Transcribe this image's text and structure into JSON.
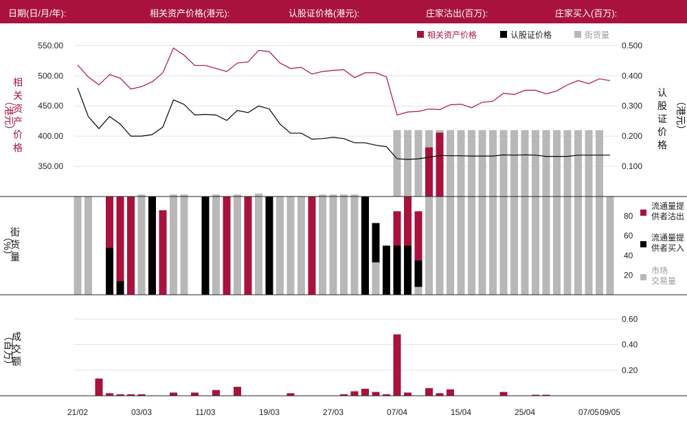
{
  "header": {
    "date_label": "日期(日/月/年):",
    "underlying_label": "相关资产价格(港元):",
    "warrant_label": "认股证价格(港元):",
    "mm_sell_label": "庄家沽出(百万):",
    "mm_buy_label": "庄家买入(百万):"
  },
  "colors": {
    "brand": "#a8123c",
    "warrant": "#000000",
    "street": "#b8b8b8",
    "grid": "#e2e2e2"
  },
  "chart_data": [
    {
      "type": "line",
      "legend": [
        "相关资产价格",
        "认股证价格",
        "街货量"
      ],
      "ylabel_left": [
        "相",
        "关",
        "资",
        "产",
        "价",
        "格"
      ],
      "ylabel_left_unit": "（港元）",
      "ylabel_right": [
        "认",
        "股",
        "证",
        "价",
        "格"
      ],
      "ylabel_right_unit": "（港元）",
      "yticks_left": [
        "550.00",
        "500.00",
        "450.00",
        "400.00",
        "350.00"
      ],
      "yticks_right": [
        "0.500",
        "0.400",
        "0.300",
        "0.200",
        "0.100"
      ],
      "ylim_left": [
        300,
        580
      ],
      "ylim_right": [
        0,
        0.56
      ],
      "series": [
        {
          "name": "相关资产价格",
          "axis": "left",
          "values": [
            518,
            498,
            485,
            502,
            496,
            478,
            482,
            490,
            505,
            546,
            534,
            517,
            517,
            512,
            507,
            521,
            523,
            542,
            540,
            521,
            512,
            514,
            503,
            507,
            509,
            510,
            497,
            505,
            505,
            498,
            435,
            440,
            441,
            445,
            444,
            452,
            453,
            447,
            456,
            458,
            471,
            469,
            476,
            476,
            470,
            475,
            485,
            492,
            487,
            495,
            492
          ]
        },
        {
          "name": "认股证价格",
          "axis": "right",
          "values": [
            0.36,
            0.265,
            0.225,
            0.265,
            0.24,
            0.2,
            0.2,
            0.205,
            0.23,
            0.32,
            0.305,
            0.27,
            0.272,
            0.27,
            0.252,
            0.285,
            0.278,
            0.3,
            0.29,
            0.24,
            0.21,
            0.21,
            0.19,
            0.192,
            0.196,
            0.192,
            0.178,
            0.178,
            0.17,
            0.165,
            0.125,
            0.123,
            0.125,
            0.13,
            0.136,
            0.135,
            0.135,
            0.134,
            0.134,
            0.134,
            0.138,
            0.137,
            0.138,
            0.137,
            0.133,
            0.133,
            0.133,
            0.137,
            0.137,
            0.137,
            0.137
          ]
        }
      ],
      "street_bars": [
        0,
        0,
        0,
        0,
        0,
        0,
        0,
        0,
        0,
        0,
        0,
        0,
        0,
        0,
        0,
        0,
        0,
        0,
        0,
        0,
        0,
        0,
        0,
        0,
        0,
        0,
        0,
        0,
        0,
        0,
        0.22,
        0.22,
        0.22,
        0.22,
        0.22,
        0.22,
        0.22,
        0.22,
        0.22,
        0.22,
        0.22,
        0.22,
        0.22,
        0.22,
        0.22,
        0.22,
        0.22,
        0.22,
        0.22,
        0.22,
        0
      ]
    },
    {
      "type": "bar",
      "ylabel": [
        "街",
        "货",
        "量"
      ],
      "ylabel_unit": "（%）",
      "yticks": [
        "80",
        "60",
        "40",
        "20"
      ],
      "ylim": [
        0,
        100
      ],
      "legend": [
        {
          "name": "流通量提供者沽出",
          "lines": [
            "流通量提",
            "供者沽出"
          ]
        },
        {
          "name": "流通量提供者买入",
          "lines": [
            "流通量提",
            "供者买入"
          ]
        },
        {
          "name": "市场交易量",
          "lines": [
            "市场",
            "交易量"
          ]
        }
      ],
      "series": [
        {
          "name": "流通量提供者沽出",
          "values": [
            0,
            0,
            0,
            52,
            86,
            100,
            0,
            0,
            86,
            0,
            0,
            0,
            0,
            0,
            100,
            0,
            100,
            0,
            0,
            0,
            0,
            0,
            100,
            0,
            0,
            0,
            0,
            0,
            0,
            0,
            35,
            50,
            50,
            50,
            65,
            0,
            0,
            0,
            0,
            0,
            0,
            0,
            0,
            0,
            0,
            0,
            0,
            0,
            0,
            0,
            0
          ]
        },
        {
          "name": "流通量提供者买入",
          "values": [
            0,
            0,
            0,
            48,
            14,
            0,
            0,
            100,
            0,
            0,
            0,
            0,
            100,
            0,
            0,
            0,
            0,
            0,
            100,
            0,
            0,
            0,
            0,
            0,
            0,
            0,
            0,
            100,
            40,
            50,
            50,
            50,
            27,
            0,
            0,
            0,
            0,
            0,
            0,
            0,
            0,
            0,
            0,
            0,
            0,
            0,
            0,
            0,
            0,
            0,
            0
          ]
        },
        {
          "name": "市场交易量",
          "values": [
            100,
            100,
            0,
            0,
            0,
            0,
            102,
            0,
            0,
            102,
            102,
            0,
            0,
            102,
            0,
            102,
            0,
            103,
            0,
            100,
            100,
            100,
            0,
            102,
            102,
            102,
            102,
            0,
            33,
            0,
            0,
            0,
            8,
            100,
            100,
            100,
            100,
            100,
            100,
            100,
            100,
            100,
            100,
            100,
            100,
            100,
            100,
            100,
            100,
            100,
            100
          ]
        }
      ]
    },
    {
      "type": "bar",
      "ylabel": [
        "成",
        "交",
        "额"
      ],
      "ylabel_unit": "（百万）",
      "yticks": [
        "0.60",
        "0.40",
        "0.20"
      ],
      "ylim": [
        0,
        0.65
      ],
      "values": [
        0,
        0,
        0.135,
        0.02,
        0.012,
        0.012,
        0.012,
        0,
        0,
        0.025,
        0,
        0.025,
        0,
        0.045,
        0,
        0.07,
        0,
        0,
        0,
        0,
        0.02,
        0,
        0,
        0,
        0,
        0.012,
        0.035,
        0.055,
        0.03,
        0.012,
        0.48,
        0.025,
        0,
        0.06,
        0.02,
        0.05,
        0,
        0,
        0,
        0,
        0.03,
        0,
        0,
        0.008,
        0.008,
        0,
        0,
        0,
        0,
        0,
        0
      ],
      "x_tick_labels": [
        "21/02",
        "03/03",
        "11/03",
        "19/03",
        "27/03",
        "07/04",
        "15/04",
        "25/04",
        "07/05",
        "09/05"
      ],
      "x_tick_indices": [
        0,
        6,
        12,
        18,
        24,
        30,
        36,
        42,
        48,
        50
      ]
    }
  ]
}
